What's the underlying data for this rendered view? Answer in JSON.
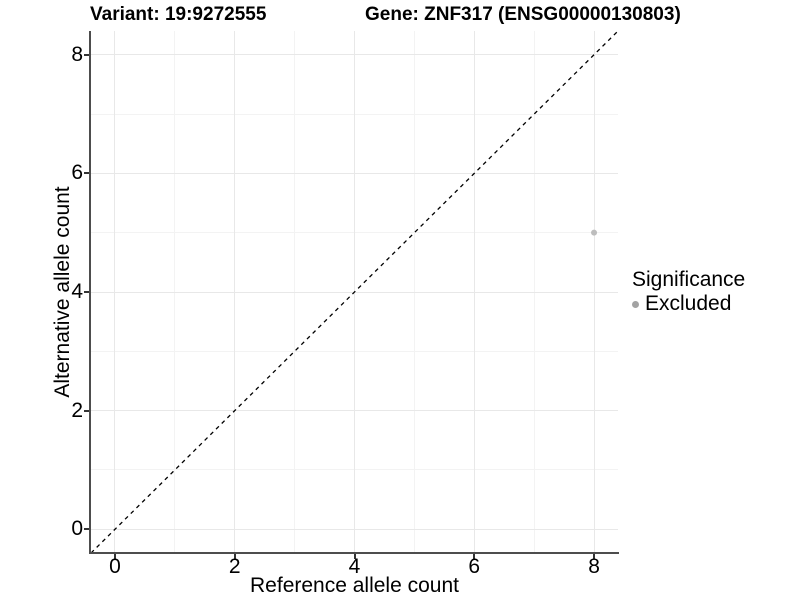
{
  "chart_data": {
    "type": "scatter",
    "title_left": "Variant: 19:9272555",
    "title_right": "Gene: ZNF317 (ENSG00000130803)",
    "xlabel": "Reference allele count",
    "ylabel": "Alternative allele count",
    "xlim": [
      -0.4,
      8.4
    ],
    "ylim": [
      -0.4,
      8.4
    ],
    "x_ticks": [
      0,
      2,
      4,
      6,
      8
    ],
    "y_ticks": [
      0,
      2,
      4,
      6,
      8
    ],
    "x_minor_ticks": [
      1,
      3,
      5,
      7
    ],
    "y_minor_ticks": [
      1,
      3,
      5,
      7
    ],
    "grid": true,
    "identity_line": {
      "type": "dashed",
      "color": "#000000",
      "from": -0.4,
      "to": 8.4
    },
    "series": [
      {
        "name": "Excluded",
        "color": "#bdbdbd",
        "points": [
          {
            "x": 8,
            "y": 5
          }
        ]
      }
    ],
    "legend": {
      "position": "right",
      "title": "Significance",
      "entries": [
        {
          "label": "Excluded",
          "color": "#a3a3a3"
        }
      ]
    },
    "colors": {
      "axis_line": "#4d4d4d",
      "major_grid": "#e8e8e8",
      "minor_grid": "#f3f3f3",
      "background": "#ffffff"
    }
  }
}
